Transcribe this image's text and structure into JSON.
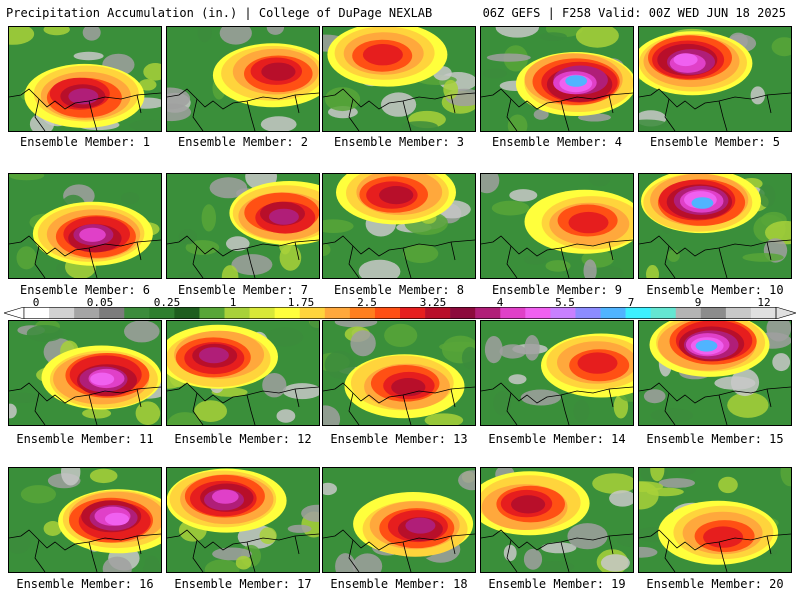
{
  "header": {
    "left_title": "Precipitation Accumulation (in.) | College of DuPage NEXLAB",
    "right_title": "06Z GEFS | F258 Valid: 00Z WED JUN 18 2025"
  },
  "legend": {
    "tick_labels": [
      "0",
      "0.05",
      "0.25",
      "1",
      "1.75",
      "2.5",
      "3.25",
      "4",
      "5.5",
      "7",
      "9",
      "12"
    ],
    "colors": [
      "#ffffff",
      "#d2d2d2",
      "#a5a5a5",
      "#7c7c7c",
      "#3c8c3c",
      "#2f7f2f",
      "#1e5e1e",
      "#58a638",
      "#a8d13a",
      "#d8e838",
      "#ffff3c",
      "#ffd43c",
      "#ffa83c",
      "#ff7f1e",
      "#ff5014",
      "#e61e1e",
      "#b80f2a",
      "#8c0a3c",
      "#b01e78",
      "#e040c8",
      "#f060f0",
      "#c880ff",
      "#8c8cff",
      "#50b4ff",
      "#3cf0ff",
      "#64e6d2",
      "#b4b4b4",
      "#8c8c8c",
      "#c8c8c8",
      "#e0e0e0"
    ]
  },
  "panels": [
    {
      "label": "Ensemble Member: 1"
    },
    {
      "label": "Ensemble Member: 2"
    },
    {
      "label": "Ensemble Member: 3"
    },
    {
      "label": "Ensemble Member: 4"
    },
    {
      "label": "Ensemble Member: 5"
    },
    {
      "label": "Ensemble Member: 6"
    },
    {
      "label": "Ensemble Member: 7"
    },
    {
      "label": "Ensemble Member: 8"
    },
    {
      "label": "Ensemble Member: 9"
    },
    {
      "label": "Ensemble Member: 10"
    },
    {
      "label": "Ensemble Member: 11"
    },
    {
      "label": "Ensemble Member: 12"
    },
    {
      "label": "Ensemble Member: 13"
    },
    {
      "label": "Ensemble Member: 14"
    },
    {
      "label": "Ensemble Member: 15"
    },
    {
      "label": "Ensemble Member: 16"
    },
    {
      "label": "Ensemble Member: 17"
    },
    {
      "label": "Ensemble Member: 18"
    },
    {
      "label": "Ensemble Member: 19"
    },
    {
      "label": "Ensemble Member: 20"
    }
  ]
}
